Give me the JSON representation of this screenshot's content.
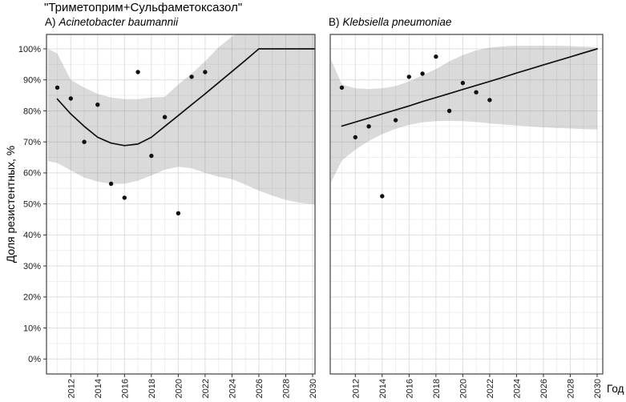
{
  "title": "\"Триметоприм+Сульфаметоксазол\"",
  "chart_data": {
    "type": "scatter",
    "title": "\"Триметоприм+Сульфаметоксазол\"",
    "xlabel": "Год",
    "ylabel": "Доля резистентных, %",
    "grid": "major+minor",
    "legend": "none",
    "xlim": [
      2010.2,
      2030.4
    ],
    "ylim_percent": [
      -4.8,
      104.7
    ],
    "x_ticks": [
      2012,
      2014,
      2016,
      2018,
      2020,
      2022,
      2024,
      2026,
      2028,
      2030
    ],
    "x_tick_labels": [
      "2012",
      "2014",
      "2016",
      "2018",
      "2020",
      "2022",
      "2024",
      "2026",
      "2028",
      "2030"
    ],
    "y_tick_values": [
      0,
      10,
      20,
      30,
      40,
      50,
      60,
      70,
      80,
      90,
      100
    ],
    "y_tick_labels": [
      "0%",
      "10%",
      "20%",
      "30%",
      "40%",
      "50%",
      "60%",
      "70%",
      "80%",
      "90%",
      "100%"
    ],
    "panels": [
      {
        "tag": "A)",
        "species": "Acinetobacter baumannii",
        "points": {
          "years": [
            2011,
            2012,
            2013,
            2014,
            2015,
            2016,
            2017,
            2018,
            2019,
            2020,
            2021,
            2022
          ],
          "percent": [
            87.5,
            84,
            70,
            82,
            56.5,
            52,
            92.5,
            65.5,
            78,
            47,
            91,
            92.5
          ]
        },
        "trend": {
          "years": [
            2011,
            2012,
            2013,
            2014,
            2015,
            2016,
            2017,
            2018,
            2019,
            2020,
            2021,
            2022,
            2023,
            2024,
            2025,
            2026,
            2027,
            2028,
            2029,
            2030,
            2030.3
          ],
          "percent": [
            83.8,
            79,
            75,
            71.5,
            69.6,
            68.8,
            69.3,
            71.5,
            75,
            78.5,
            82,
            85.5,
            89.1,
            92.7,
            96.3,
            100,
            100,
            100,
            100,
            100,
            100
          ]
        },
        "band": {
          "years": [
            2010.3,
            2011,
            2012,
            2013,
            2014,
            2015,
            2016,
            2017,
            2018,
            2019,
            2020,
            2021,
            2022,
            2023,
            2024,
            2025,
            2026,
            2027,
            2028,
            2029,
            2030,
            2030.3
          ],
          "upper": [
            100,
            98.5,
            90,
            87.5,
            85.5,
            84.3,
            83.8,
            83.8,
            84.3,
            84.5,
            88.5,
            92,
            96,
            100.5,
            104,
            106,
            106,
            106,
            106,
            106,
            106,
            106
          ],
          "lower": [
            63.8,
            63.2,
            60.8,
            58.5,
            57.2,
            56.5,
            56.5,
            57.5,
            59.2,
            61,
            62,
            61.5,
            60,
            58.8,
            58,
            56.2,
            54.3,
            52.7,
            51.3,
            50.4,
            50,
            49.8
          ]
        }
      },
      {
        "tag": "B)",
        "species": "Klebsiella pneumoniae",
        "points": {
          "years": [
            2011,
            2012,
            2013,
            2014,
            2015,
            2016,
            2017,
            2018,
            2019,
            2020,
            2021,
            2022
          ],
          "percent": [
            87.5,
            71.5,
            75,
            52.5,
            77,
            91,
            92,
            97.5,
            80,
            89,
            86,
            83.5
          ]
        },
        "trend": {
          "years": [
            2011,
            2012,
            2013,
            2014,
            2015,
            2016,
            2017,
            2018,
            2019,
            2020,
            2021,
            2022,
            2023,
            2024,
            2025,
            2026,
            2027,
            2028,
            2029,
            2030
          ],
          "percent": [
            75.1,
            76.4,
            77.7,
            79,
            80.3,
            81.6,
            83,
            84.3,
            85.6,
            86.9,
            88.2,
            89.5,
            90.8,
            92.2,
            93.5,
            94.8,
            96.1,
            97.4,
            98.7,
            100
          ]
        },
        "band": {
          "years": [
            2010.2,
            2011,
            2012,
            2013,
            2014,
            2015,
            2016,
            2017,
            2018,
            2019,
            2020,
            2021,
            2022,
            2023,
            2024,
            2025,
            2026,
            2027,
            2028,
            2029,
            2030
          ],
          "upper": [
            96.5,
            88.5,
            87.3,
            87,
            87.3,
            88,
            89.5,
            91.5,
            93.5,
            96,
            98,
            99.5,
            100.4,
            100.8,
            101,
            101,
            101,
            101,
            100.9,
            100.7,
            100.5
          ],
          "lower": [
            57,
            64,
            67.5,
            70.3,
            72.5,
            74.2,
            75.5,
            76.3,
            76.7,
            76.8,
            76.7,
            76.4,
            76,
            75.6,
            75.3,
            75,
            74.7,
            74.5,
            74.3,
            74.1,
            74
          ]
        }
      }
    ],
    "colors": {
      "point": "#111111",
      "trend": "#111111",
      "band": "#6f6f6f",
      "band_opacity": 0.26,
      "grid_major": "#dedede",
      "grid_minor": "#efefef",
      "panel_border": "#404040",
      "tick": "#333333",
      "text": "#1a1a1a"
    }
  }
}
